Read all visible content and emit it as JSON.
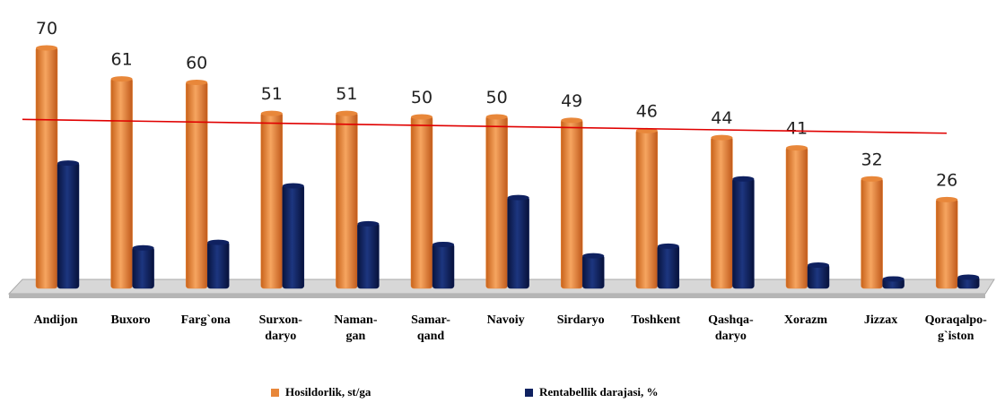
{
  "chart_data": {
    "type": "bar",
    "categories": [
      [
        "Andijon"
      ],
      [
        "Buxoro"
      ],
      [
        "Farg`ona"
      ],
      [
        "Surxon-",
        "daryo"
      ],
      [
        "Naman-",
        "gan"
      ],
      [
        "Samar-",
        "qand"
      ],
      [
        "Navoiy"
      ],
      [
        "Sirdaryo"
      ],
      [
        "Toshkent"
      ],
      [
        "Qashqa-",
        "daryo"
      ],
      [
        "Xorazm"
      ],
      [
        "Jizzax"
      ],
      [
        "Qoraqalpo-",
        "g`iston"
      ]
    ],
    "series": [
      {
        "name": "Hosildorlik, st/ga",
        "color": "#e8873a",
        "values": [
          70,
          61,
          60,
          51,
          51,
          50,
          50,
          49,
          46,
          44,
          41,
          32,
          26
        ],
        "labels": true
      },
      {
        "name": "Rentabellik darajasi, %",
        "color": "#0f2160",
        "values": [
          36.6,
          12,
          13.6,
          30,
          19,
          13,
          26.6,
          9.7,
          12.5,
          32,
          7,
          3,
          3.5
        ],
        "labels": false
      }
    ],
    "trend_line": {
      "start": 49,
      "end": 45,
      "color": "#e00000"
    },
    "ylim": [
      0,
      80
    ]
  }
}
